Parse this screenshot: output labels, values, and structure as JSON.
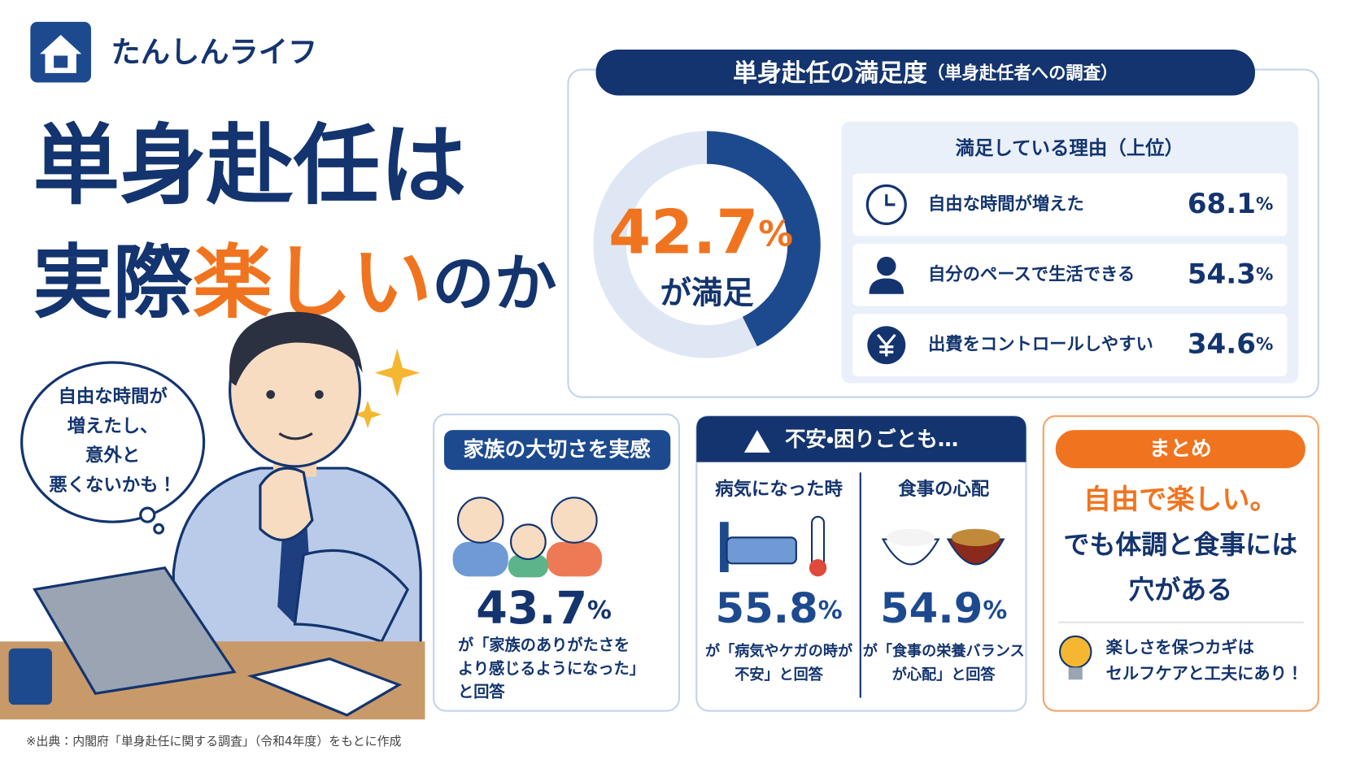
{
  "header": {
    "brand": "たんしんライフ",
    "title_line1": "単身赴任は",
    "title_line2_start": "実際",
    "title_line2_highlight": "楽しい",
    "title_line2_end": "のか？"
  },
  "speech_bubble": [
    "自由な時間が",
    "増えたし、",
    "意外と",
    "悪くないかも！"
  ],
  "satisfaction": {
    "heading": "単身赴任の満足度",
    "heading_note": "（単身赴任者への調査）",
    "value": 42.7,
    "unit": "%",
    "caption": "が満足",
    "reasons_title": "満足している理由（上位）",
    "reasons": [
      {
        "label": "自由な時間が増えた",
        "value": 68.1,
        "unit": "%"
      },
      {
        "label": "自分のペースで生活できる",
        "value": 54.3,
        "unit": "%"
      },
      {
        "label": "出費をコントロールしやすい",
        "value": 34.6,
        "unit": "%"
      }
    ]
  },
  "family": {
    "heading": "家族の大切さを実感",
    "value": 43.7,
    "unit": "%",
    "note_lines": [
      "が「家族のありがたさを",
      "より感じるようになった」",
      "と回答"
    ]
  },
  "worries": {
    "heading": "不安・困りごとも…",
    "items": [
      {
        "title": "病気になった時",
        "value": 55.8,
        "unit": "%",
        "note_lines": [
          "が「病気やケガの時が",
          "不安」と回答"
        ]
      },
      {
        "title": "食事の心配",
        "value": 54.9,
        "unit": "%",
        "note_lines": [
          "が「食事の栄養バランス",
          "が心配」と回答"
        ]
      }
    ]
  },
  "summary": {
    "heading": "まとめ",
    "line1": "自由で楽しい。",
    "line2": "でも体調と食事には",
    "line3": "穴がある",
    "tip_lines": [
      "楽しさを保つカギは",
      "セルフケアと工夫にあり！"
    ]
  },
  "source": "※出典：内閣府「単身赴任に関する調査」（令和4年度）をもとに作成"
}
